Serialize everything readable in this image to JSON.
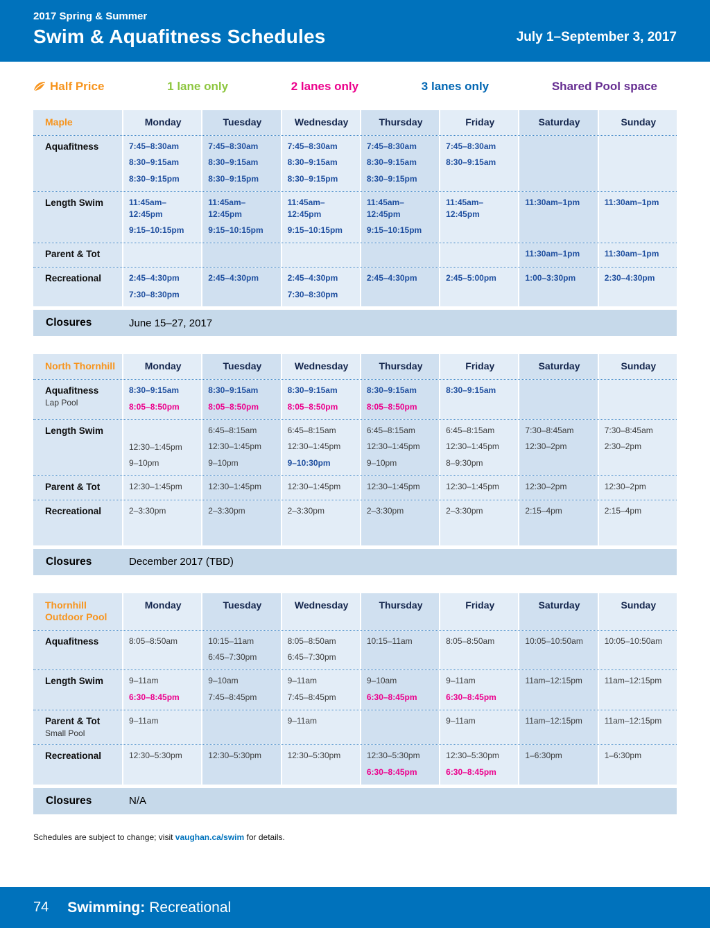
{
  "header": {
    "season": "2017 Spring & Summer",
    "title": "Swim & Aquafitness Schedules",
    "date_range": "July 1–September 3, 2017"
  },
  "legend": {
    "items": [
      {
        "label": "Half Price",
        "color": "#f7941d",
        "icon": "half-price-leaf-icon"
      },
      {
        "label": "1 lane only",
        "color": "#8dc63f"
      },
      {
        "label": "2 lanes only",
        "color": "#ec008c"
      },
      {
        "label": "3 lanes only",
        "color": "#0066b3"
      },
      {
        "label": "Shared Pool space",
        "color": "#662d91"
      }
    ]
  },
  "days": [
    "Monday",
    "Tuesday",
    "Wednesday",
    "Thursday",
    "Friday",
    "Saturday",
    "Sunday"
  ],
  "closures_label": "Closures",
  "schedules": [
    {
      "location": "Maple",
      "closures": "June 15–27, 2017",
      "rows": [
        {
          "label": "Aquafitness",
          "sublabel": "",
          "cells": [
            [
              {
                "t": "7:45–8:30am",
                "s": "blue"
              },
              {
                "t": "8:30–9:15am",
                "s": "blue"
              },
              {
                "t": "8:30–9:15pm",
                "s": "blue"
              }
            ],
            [
              {
                "t": "7:45–8:30am",
                "s": "blue"
              },
              {
                "t": "8:30–9:15am",
                "s": "blue"
              },
              {
                "t": "8:30–9:15pm",
                "s": "blue"
              }
            ],
            [
              {
                "t": "7:45–8:30am",
                "s": "blue"
              },
              {
                "t": "8:30–9:15am",
                "s": "blue"
              },
              {
                "t": "8:30–9:15pm",
                "s": "blue"
              }
            ],
            [
              {
                "t": "7:45–8:30am",
                "s": "blue"
              },
              {
                "t": "8:30–9:15am",
                "s": "blue"
              },
              {
                "t": "8:30–9:15pm",
                "s": "blue"
              }
            ],
            [
              {
                "t": "7:45–8:30am",
                "s": "blue"
              },
              {
                "t": "8:30–9:15am",
                "s": "blue"
              }
            ],
            [],
            []
          ]
        },
        {
          "label": "Length Swim",
          "sublabel": "",
          "cells": [
            [
              {
                "t": "11:45am–\n12:45pm",
                "s": "blue"
              },
              {
                "t": "9:15–10:15pm",
                "s": "blue"
              }
            ],
            [
              {
                "t": "11:45am–\n12:45pm",
                "s": "blue"
              },
              {
                "t": "9:15–10:15pm",
                "s": "blue"
              }
            ],
            [
              {
                "t": "11:45am–\n12:45pm",
                "s": "blue"
              },
              {
                "t": "9:15–10:15pm",
                "s": "blue"
              }
            ],
            [
              {
                "t": "11:45am–\n12:45pm",
                "s": "blue"
              },
              {
                "t": "9:15–10:15pm",
                "s": "blue"
              }
            ],
            [
              {
                "t": "11:45am–\n12:45pm",
                "s": "blue"
              }
            ],
            [
              {
                "t": "11:30am–1pm",
                "s": "blue"
              }
            ],
            [
              {
                "t": "11:30am–1pm",
                "s": "blue"
              }
            ]
          ]
        },
        {
          "label": "Parent & Tot",
          "sublabel": "",
          "cells": [
            [],
            [],
            [],
            [],
            [],
            [
              {
                "t": "11:30am–1pm",
                "s": "blue"
              }
            ],
            [
              {
                "t": "11:30am–1pm",
                "s": "blue"
              }
            ]
          ]
        },
        {
          "label": "Recreational",
          "sublabel": "",
          "cells": [
            [
              {
                "t": "2:45–4:30pm",
                "s": "blue"
              },
              {
                "t": "7:30–8:30pm",
                "s": "blue"
              }
            ],
            [
              {
                "t": "2:45–4:30pm",
                "s": "blue"
              }
            ],
            [
              {
                "t": "2:45–4:30pm",
                "s": "blue"
              },
              {
                "t": "7:30–8:30pm",
                "s": "blue"
              }
            ],
            [
              {
                "t": "2:45–4:30pm",
                "s": "blue"
              }
            ],
            [
              {
                "t": "2:45–5:00pm",
                "s": "blue"
              }
            ],
            [
              {
                "t": "1:00–3:30pm",
                "s": "blue"
              }
            ],
            [
              {
                "t": "2:30–4:30pm",
                "s": "blue"
              }
            ]
          ]
        }
      ]
    },
    {
      "location": "North Thornhill",
      "closures": "December 2017 (TBD)",
      "rows": [
        {
          "label": "Aquafitness",
          "sublabel": "Lap Pool",
          "cells": [
            [
              {
                "t": "8:30–9:15am",
                "s": "blue"
              },
              {
                "t": "8:05–8:50pm",
                "s": "magenta"
              }
            ],
            [
              {
                "t": "8:30–9:15am",
                "s": "blue"
              },
              {
                "t": "8:05–8:50pm",
                "s": "magenta"
              }
            ],
            [
              {
                "t": "8:30–9:15am",
                "s": "blue"
              },
              {
                "t": "8:05–8:50pm",
                "s": "magenta"
              }
            ],
            [
              {
                "t": "8:30–9:15am",
                "s": "blue"
              },
              {
                "t": "8:05–8:50pm",
                "s": "magenta"
              }
            ],
            [
              {
                "t": "8:30–9:15am",
                "s": "blue"
              }
            ],
            [],
            []
          ]
        },
        {
          "label": "Length Swim",
          "sublabel": "",
          "cells": [
            [
              {
                "t": "",
                "s": "spacer"
              },
              {
                "t": "12:30–1:45pm",
                "s": "plain"
              },
              {
                "t": "9–10pm",
                "s": "plain"
              }
            ],
            [
              {
                "t": "6:45–8:15am",
                "s": "plain"
              },
              {
                "t": "12:30–1:45pm",
                "s": "plain"
              },
              {
                "t": "9–10pm",
                "s": "plain"
              }
            ],
            [
              {
                "t": "6:45–8:15am",
                "s": "plain"
              },
              {
                "t": "12:30–1:45pm",
                "s": "plain"
              },
              {
                "t": "9–10:30pm",
                "s": "blue"
              }
            ],
            [
              {
                "t": "6:45–8:15am",
                "s": "plain"
              },
              {
                "t": "12:30–1:45pm",
                "s": "plain"
              },
              {
                "t": "9–10pm",
                "s": "plain"
              }
            ],
            [
              {
                "t": "6:45–8:15am",
                "s": "plain"
              },
              {
                "t": "12:30–1:45pm",
                "s": "plain"
              },
              {
                "t": "8–9:30pm",
                "s": "plain"
              }
            ],
            [
              {
                "t": "7:30–8:45am",
                "s": "plain"
              },
              {
                "t": "12:30–2pm",
                "s": "plain"
              }
            ],
            [
              {
                "t": "7:30–8:45am",
                "s": "plain"
              },
              {
                "t": "2:30–2pm",
                "s": "plain"
              }
            ]
          ]
        },
        {
          "label": "Parent & Tot",
          "sublabel": "",
          "cells": [
            [
              {
                "t": "12:30–1:45pm",
                "s": "plain"
              }
            ],
            [
              {
                "t": "12:30–1:45pm",
                "s": "plain"
              }
            ],
            [
              {
                "t": "12:30–1:45pm",
                "s": "plain"
              }
            ],
            [
              {
                "t": "12:30–1:45pm",
                "s": "plain"
              }
            ],
            [
              {
                "t": "12:30–1:45pm",
                "s": "plain"
              }
            ],
            [
              {
                "t": "12:30–2pm",
                "s": "plain"
              }
            ],
            [
              {
                "t": "12:30–2pm",
                "s": "plain"
              }
            ]
          ]
        },
        {
          "label": "Recreational",
          "sublabel": "",
          "cells": [
            [
              {
                "t": "2–3:30pm",
                "s": "plain"
              }
            ],
            [
              {
                "t": "2–3:30pm",
                "s": "plain"
              }
            ],
            [
              {
                "t": "2–3:30pm",
                "s": "plain"
              }
            ],
            [
              {
                "t": "2–3:30pm",
                "s": "plain"
              }
            ],
            [
              {
                "t": "2–3:30pm",
                "s": "plain"
              }
            ],
            [
              {
                "t": "2:15–4pm",
                "s": "plain"
              }
            ],
            [
              {
                "t": "2:15–4pm",
                "s": "plain"
              }
            ]
          ]
        }
      ]
    },
    {
      "location": "Thornhill Outdoor Pool",
      "closures": "N/A",
      "rows": [
        {
          "label": "Aquafitness",
          "sublabel": "",
          "cells": [
            [
              {
                "t": "8:05–8:50am",
                "s": "plain"
              }
            ],
            [
              {
                "t": "10:15–11am",
                "s": "plain"
              },
              {
                "t": "6:45–7:30pm",
                "s": "plain"
              }
            ],
            [
              {
                "t": "8:05–8:50am",
                "s": "plain"
              },
              {
                "t": "6:45–7:30pm",
                "s": "plain"
              }
            ],
            [
              {
                "t": "10:15–11am",
                "s": "plain"
              }
            ],
            [
              {
                "t": "8:05–8:50am",
                "s": "plain"
              }
            ],
            [
              {
                "t": "10:05–10:50am",
                "s": "plain"
              }
            ],
            [
              {
                "t": "10:05–10:50am",
                "s": "plain"
              }
            ]
          ]
        },
        {
          "label": "Length Swim",
          "sublabel": "",
          "cells": [
            [
              {
                "t": "9–11am",
                "s": "plain"
              },
              {
                "t": "6:30–8:45pm",
                "s": "magenta"
              }
            ],
            [
              {
                "t": "9–10am",
                "s": "plain"
              },
              {
                "t": "7:45–8:45pm",
                "s": "plain"
              }
            ],
            [
              {
                "t": "9–11am",
                "s": "plain"
              },
              {
                "t": "7:45–8:45pm",
                "s": "plain"
              }
            ],
            [
              {
                "t": "9–10am",
                "s": "plain"
              },
              {
                "t": "6:30–8:45pm",
                "s": "magenta"
              }
            ],
            [
              {
                "t": "9–11am",
                "s": "plain"
              },
              {
                "t": "6:30–8:45pm",
                "s": "magenta"
              }
            ],
            [
              {
                "t": "11am–12:15pm",
                "s": "plain"
              }
            ],
            [
              {
                "t": "11am–12:15pm",
                "s": "plain"
              }
            ]
          ]
        },
        {
          "label": "Parent & Tot",
          "sublabel": "Small Pool",
          "cells": [
            [
              {
                "t": "9–11am",
                "s": "plain"
              }
            ],
            [],
            [
              {
                "t": "9–11am",
                "s": "plain"
              }
            ],
            [],
            [
              {
                "t": "9–11am",
                "s": "plain"
              }
            ],
            [
              {
                "t": "11am–12:15pm",
                "s": "plain"
              }
            ],
            [
              {
                "t": "11am–12:15pm",
                "s": "plain"
              }
            ]
          ]
        },
        {
          "label": "Recreational",
          "sublabel": "",
          "cells": [
            [
              {
                "t": "12:30–5:30pm",
                "s": "plain"
              }
            ],
            [
              {
                "t": "12:30–5:30pm",
                "s": "plain"
              }
            ],
            [
              {
                "t": "12:30–5:30pm",
                "s": "plain"
              }
            ],
            [
              {
                "t": "12:30–5:30pm",
                "s": "plain"
              },
              {
                "t": "6:30–8:45pm",
                "s": "magenta"
              }
            ],
            [
              {
                "t": "12:30–5:30pm",
                "s": "plain"
              },
              {
                "t": "6:30–8:45pm",
                "s": "magenta"
              }
            ],
            [
              {
                "t": "1–6:30pm",
                "s": "plain"
              }
            ],
            [
              {
                "t": "1–6:30pm",
                "s": "plain"
              }
            ]
          ]
        }
      ]
    }
  ],
  "footnote": {
    "prefix": "Schedules are subject to change; visit ",
    "link": "vaughan.ca/swim",
    "suffix": " for details."
  },
  "footer_bar": {
    "page_number": "74",
    "section": "Swimming:",
    "subsection": "Recreational"
  }
}
